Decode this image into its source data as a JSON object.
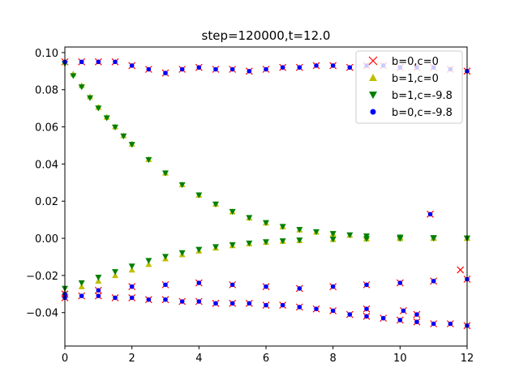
{
  "chart_data": {
    "type": "scatter",
    "title": "step=120000,t=12.0",
    "xlabel": "",
    "ylabel": "",
    "xlim": [
      0,
      12
    ],
    "ylim": [
      -0.058,
      0.103
    ],
    "xticks": [
      0,
      2,
      4,
      6,
      8,
      10,
      12
    ],
    "yticks": [
      -0.04,
      -0.02,
      0.0,
      0.02,
      0.04,
      0.06,
      0.08,
      0.1
    ],
    "ytick_labels": [
      "−0.04",
      "−0.02",
      "0.00",
      "0.02",
      "0.04",
      "0.06",
      "0.08",
      "0.10"
    ],
    "grid": false,
    "legend_position": "top-right",
    "series": [
      {
        "name": "b=0,c=0",
        "marker": "x",
        "color": "#ff0000",
        "points": [
          [
            0,
            0.095
          ],
          [
            0.5,
            0.095
          ],
          [
            1,
            0.095
          ],
          [
            1.5,
            0.095
          ],
          [
            2,
            0.093
          ],
          [
            2.5,
            0.091
          ],
          [
            3,
            0.089
          ],
          [
            3.5,
            0.091
          ],
          [
            4,
            0.092
          ],
          [
            4.5,
            0.091
          ],
          [
            5,
            0.091
          ],
          [
            5.5,
            0.09
          ],
          [
            6,
            0.091
          ],
          [
            6.5,
            0.092
          ],
          [
            7,
            0.092
          ],
          [
            7.5,
            0.093
          ],
          [
            8,
            0.093
          ],
          [
            8.5,
            0.092
          ],
          [
            9,
            0.093
          ],
          [
            9.5,
            0.093
          ],
          [
            10,
            0.092
          ],
          [
            10.5,
            0.092
          ],
          [
            11,
            0.092
          ],
          [
            11.5,
            0.091
          ],
          [
            12,
            0.09
          ],
          [
            0,
            -0.03
          ],
          [
            0.5,
            -0.031
          ],
          [
            1,
            -0.031
          ],
          [
            1.5,
            -0.032
          ],
          [
            2,
            -0.032
          ],
          [
            2.5,
            -0.033
          ],
          [
            3,
            -0.033
          ],
          [
            3.5,
            -0.034
          ],
          [
            4,
            -0.034
          ],
          [
            4.5,
            -0.035
          ],
          [
            5,
            -0.035
          ],
          [
            5.5,
            -0.035
          ],
          [
            6,
            -0.036
          ],
          [
            6.5,
            -0.036
          ],
          [
            7,
            -0.037
          ],
          [
            7.5,
            -0.038
          ],
          [
            8,
            -0.039
          ],
          [
            8.5,
            -0.041
          ],
          [
            9,
            -0.042
          ],
          [
            9.5,
            -0.043
          ],
          [
            10,
            -0.044
          ],
          [
            10.5,
            -0.045
          ],
          [
            11,
            -0.046
          ],
          [
            11.5,
            -0.046
          ],
          [
            12,
            -0.047
          ],
          [
            0,
            -0.032
          ],
          [
            1,
            -0.028
          ],
          [
            2,
            -0.026
          ],
          [
            3,
            -0.025
          ],
          [
            4,
            -0.024
          ],
          [
            5,
            -0.025
          ],
          [
            6,
            -0.026
          ],
          [
            7,
            -0.027
          ],
          [
            8,
            -0.026
          ],
          [
            9,
            -0.025
          ],
          [
            10,
            -0.024
          ],
          [
            11,
            -0.023
          ],
          [
            12,
            -0.022
          ],
          [
            10.9,
            0.013
          ],
          [
            11.8,
            -0.017
          ],
          [
            9.0,
            -0.038
          ],
          [
            10.1,
            -0.039
          ],
          [
            10.5,
            -0.041
          ]
        ]
      },
      {
        "name": "b=1,c=0",
        "marker": "triangle-up",
        "color": "#bfbf00",
        "points": [
          [
            0,
            0.095
          ],
          [
            0.25,
            0.0885
          ],
          [
            0.5,
            0.0823
          ],
          [
            0.75,
            0.0763
          ],
          [
            1,
            0.0706
          ],
          [
            1.25,
            0.0653
          ],
          [
            1.5,
            0.0601
          ],
          [
            1.75,
            0.0553
          ],
          [
            2,
            0.0508
          ],
          [
            2.5,
            0.0425
          ],
          [
            3,
            0.0352
          ],
          [
            3.5,
            0.0289
          ],
          [
            4,
            0.0233
          ],
          [
            4.5,
            0.0184
          ],
          [
            5,
            0.0143
          ],
          [
            5.5,
            0.011
          ],
          [
            6,
            0.0083
          ],
          [
            6.5,
            0.0062
          ],
          [
            7,
            0.0046
          ],
          [
            7.5,
            0.0034
          ],
          [
            8,
            0.0024
          ],
          [
            8.5,
            0.0017
          ],
          [
            9,
            0.0011
          ],
          [
            10,
            0.0006
          ],
          [
            11,
            0.0003
          ],
          [
            12,
            0.0001
          ],
          [
            0,
            -0.029
          ],
          [
            0.5,
            -0.026
          ],
          [
            1,
            -0.023
          ],
          [
            1.5,
            -0.02
          ],
          [
            2,
            -0.017
          ],
          [
            2.5,
            -0.014
          ],
          [
            3,
            -0.011
          ],
          [
            3.5,
            -0.0088
          ],
          [
            4,
            -0.0068
          ],
          [
            4.5,
            -0.0052
          ],
          [
            5,
            -0.0039
          ],
          [
            5.5,
            -0.0029
          ],
          [
            6,
            -0.0021
          ],
          [
            6.5,
            -0.0016
          ],
          [
            7,
            -0.0012
          ],
          [
            8,
            -0.0006
          ],
          [
            9,
            -0.0003
          ],
          [
            10,
            -0.0001
          ],
          [
            11,
            0.0
          ],
          [
            12,
            0.0
          ]
        ]
      },
      {
        "name": "b=1,c=-9.8",
        "marker": "triangle-down",
        "color": "#008000",
        "points": [
          [
            0,
            0.094
          ],
          [
            0.25,
            0.0875
          ],
          [
            0.5,
            0.0815
          ],
          [
            0.75,
            0.0756
          ],
          [
            1,
            0.0701
          ],
          [
            1.25,
            0.0648
          ],
          [
            1.5,
            0.0598
          ],
          [
            1.75,
            0.055
          ],
          [
            2,
            0.0505
          ],
          [
            2.5,
            0.0423
          ],
          [
            3,
            0.0351
          ],
          [
            3.5,
            0.0288
          ],
          [
            4,
            0.0233
          ],
          [
            4.5,
            0.0184
          ],
          [
            5,
            0.0144
          ],
          [
            5.5,
            0.0111
          ],
          [
            6,
            0.0084
          ],
          [
            6.5,
            0.0063
          ],
          [
            7,
            0.0047
          ],
          [
            7.5,
            0.0035
          ],
          [
            8,
            0.0025
          ],
          [
            8.5,
            0.0018
          ],
          [
            9,
            0.0012
          ],
          [
            10,
            0.0006
          ],
          [
            11,
            0.0003
          ],
          [
            12,
            0.0001
          ],
          [
            0,
            -0.027
          ],
          [
            0.5,
            -0.024
          ],
          [
            1,
            -0.021
          ],
          [
            1.5,
            -0.018
          ],
          [
            2,
            -0.015
          ],
          [
            2.5,
            -0.012
          ],
          [
            3,
            -0.0098
          ],
          [
            3.5,
            -0.0078
          ],
          [
            4,
            -0.006
          ],
          [
            4.5,
            -0.0046
          ],
          [
            5,
            -0.0035
          ],
          [
            5.5,
            -0.0026
          ],
          [
            6,
            -0.0019
          ],
          [
            6.5,
            -0.0014
          ],
          [
            7,
            -0.001
          ],
          [
            8,
            -0.0005
          ],
          [
            9,
            -0.0002
          ],
          [
            10,
            -0.0001
          ],
          [
            11,
            0.0
          ],
          [
            12,
            0.0
          ]
        ]
      },
      {
        "name": "b=0,c=-9.8",
        "marker": "circle",
        "color": "#0000ff",
        "points": [
          [
            0,
            0.095
          ],
          [
            0.5,
            0.095
          ],
          [
            1,
            0.095
          ],
          [
            1.5,
            0.095
          ],
          [
            2,
            0.093
          ],
          [
            2.5,
            0.091
          ],
          [
            3,
            0.089
          ],
          [
            3.5,
            0.091
          ],
          [
            4,
            0.092
          ],
          [
            4.5,
            0.091
          ],
          [
            5,
            0.091
          ],
          [
            5.5,
            0.09
          ],
          [
            6,
            0.091
          ],
          [
            6.5,
            0.092
          ],
          [
            7,
            0.092
          ],
          [
            7.5,
            0.093
          ],
          [
            8,
            0.093
          ],
          [
            8.5,
            0.092
          ],
          [
            9,
            0.093
          ],
          [
            9.5,
            0.093
          ],
          [
            10,
            0.092
          ],
          [
            10.5,
            0.092
          ],
          [
            11,
            0.092
          ],
          [
            11.5,
            0.091
          ],
          [
            12,
            0.09
          ],
          [
            0,
            -0.03
          ],
          [
            0.5,
            -0.031
          ],
          [
            1,
            -0.031
          ],
          [
            1.5,
            -0.032
          ],
          [
            2,
            -0.032
          ],
          [
            2.5,
            -0.033
          ],
          [
            3,
            -0.033
          ],
          [
            3.5,
            -0.034
          ],
          [
            4,
            -0.034
          ],
          [
            4.5,
            -0.035
          ],
          [
            5,
            -0.035
          ],
          [
            5.5,
            -0.035
          ],
          [
            6,
            -0.036
          ],
          [
            6.5,
            -0.036
          ],
          [
            7,
            -0.037
          ],
          [
            7.5,
            -0.038
          ],
          [
            8,
            -0.039
          ],
          [
            8.5,
            -0.041
          ],
          [
            9,
            -0.042
          ],
          [
            9.5,
            -0.043
          ],
          [
            10,
            -0.044
          ],
          [
            10.5,
            -0.045
          ],
          [
            11,
            -0.046
          ],
          [
            11.5,
            -0.046
          ],
          [
            12,
            -0.047
          ],
          [
            0,
            -0.032
          ],
          [
            1,
            -0.028
          ],
          [
            2,
            -0.026
          ],
          [
            3,
            -0.025
          ],
          [
            4,
            -0.024
          ],
          [
            5,
            -0.025
          ],
          [
            6,
            -0.026
          ],
          [
            7,
            -0.027
          ],
          [
            8,
            -0.026
          ],
          [
            9,
            -0.025
          ],
          [
            10,
            -0.024
          ],
          [
            11,
            -0.023
          ],
          [
            12,
            -0.022
          ],
          [
            10.9,
            0.013
          ],
          [
            9.0,
            -0.038
          ],
          [
            10.1,
            -0.039
          ],
          [
            10.5,
            -0.041
          ]
        ]
      }
    ]
  }
}
